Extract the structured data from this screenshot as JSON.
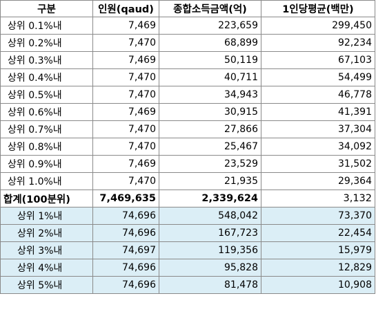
{
  "headers": [
    "구분",
    "인원(qaud)",
    "종합소득금액(억)",
    "1인당평균(백만)"
  ],
  "rows": [
    {
      "label": "상위 0.1%내",
      "people": "7,469",
      "income": "223,659",
      "avg": "299,450"
    },
    {
      "label": "상위 0.2%내",
      "people": "7,470",
      "income": "68,899",
      "avg": "92,234"
    },
    {
      "label": "상위 0.3%내",
      "people": "7,469",
      "income": "50,119",
      "avg": "67,103"
    },
    {
      "label": "상위 0.4%내",
      "people": "7,470",
      "income": "40,711",
      "avg": "54,499"
    },
    {
      "label": "상위 0.5%내",
      "people": "7,470",
      "income": "34,943",
      "avg": "46,778"
    },
    {
      "label": "상위 0.6%내",
      "people": "7,469",
      "income": "30,915",
      "avg": "41,391"
    },
    {
      "label": "상위 0.7%내",
      "people": "7,470",
      "income": "27,866",
      "avg": "37,304"
    },
    {
      "label": "상위 0.8%내",
      "people": "7,470",
      "income": "25,467",
      "avg": "34,092"
    },
    {
      "label": "상위 0.9%내",
      "people": "7,469",
      "income": "23,529",
      "avg": "31,502"
    },
    {
      "label": "상위 1.0%내",
      "people": "7,470",
      "income": "21,935",
      "avg": "29,364"
    }
  ],
  "total": {
    "label": "합계(100분위)",
    "people": "7,469,635",
    "income": "2,339,624",
    "avg": "3,132"
  },
  "summary_rows": [
    {
      "label": "상위 1%내",
      "people": "74,696",
      "income": "548,042",
      "avg": "73,370"
    },
    {
      "label": "상위 2%내",
      "people": "74,696",
      "income": "167,723",
      "avg": "22,454"
    },
    {
      "label": "상위 3%내",
      "people": "74,697",
      "income": "119,356",
      "avg": "15,979"
    },
    {
      "label": "상위 4%내",
      "people": "74,696",
      "income": "95,828",
      "avg": "12,829"
    },
    {
      "label": "상위 5%내",
      "people": "74,696",
      "income": "81,478",
      "avg": "10,908"
    }
  ],
  "colors": {
    "summary_fill": "#dbeef6",
    "border": "#8a8a8a"
  }
}
